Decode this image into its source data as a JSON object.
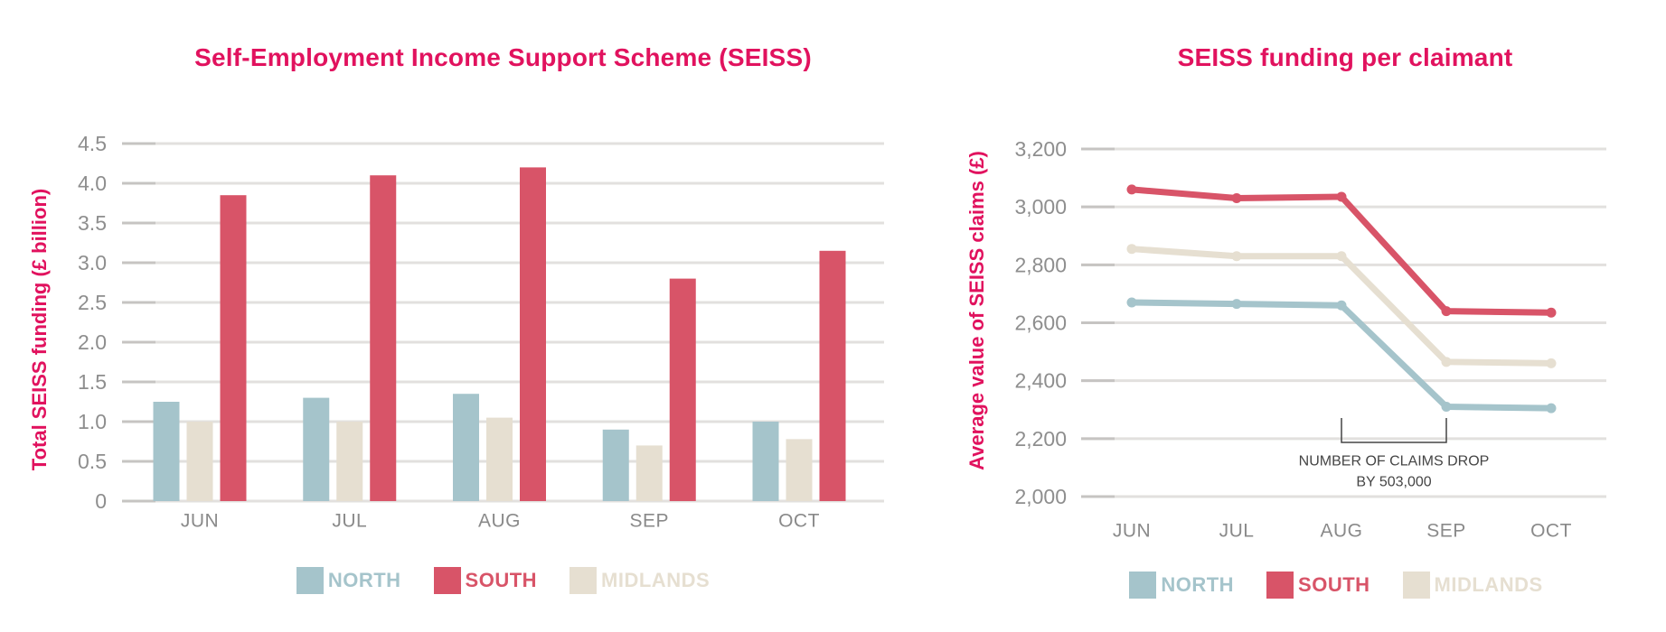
{
  "colors": {
    "pink": "#E1125E",
    "north": "#A5C4CB",
    "south": "#D85468",
    "midlands": "#E6DFD1",
    "tick_label": "#8E8E8E",
    "axis_label_gray": "#8A8A8A",
    "gridline": "#E2E0DE",
    "tick_stub": "#C6C4C2",
    "annotation": "#454545"
  },
  "chart_data": [
    {
      "type": "bar",
      "title": "Self-Employment Income Support Scheme (SEISS)",
      "ylabel": "Total SEISS funding (£ billion)",
      "categories": [
        "JUN",
        "JUL",
        "AUG",
        "SEP",
        "OCT"
      ],
      "series": [
        {
          "name": "NORTH",
          "color": "north",
          "values": [
            1.25,
            1.3,
            1.35,
            0.9,
            1.0
          ]
        },
        {
          "name": "MIDLANDS",
          "color": "midlands",
          "values": [
            1.0,
            1.0,
            1.05,
            0.7,
            0.78
          ]
        },
        {
          "name": "SOUTH",
          "color": "south",
          "values": [
            3.85,
            4.1,
            4.2,
            2.8,
            3.15
          ]
        }
      ],
      "ylim": [
        0,
        4.5
      ],
      "ytick_step": 0.5,
      "ytick_labels": [
        "0",
        "0.5",
        "1.0",
        "1.5",
        "2.0",
        "2.5",
        "3.0",
        "3.5",
        "4.0",
        "4.5"
      ],
      "grid": true,
      "legend_position": "bottom",
      "legend": [
        {
          "label": "NORTH",
          "color": "north"
        },
        {
          "label": "SOUTH",
          "color": "south"
        },
        {
          "label": "MIDLANDS",
          "color": "midlands"
        }
      ]
    },
    {
      "type": "line",
      "title": "SEISS funding per claimant",
      "ylabel": "Average value of SEISS claims (£)",
      "categories": [
        "JUN",
        "JUL",
        "AUG",
        "SEP",
        "OCT"
      ],
      "series": [
        {
          "name": "NORTH",
          "color": "north",
          "values": [
            2670,
            2665,
            2660,
            2310,
            2305
          ]
        },
        {
          "name": "MIDLANDS",
          "color": "midlands",
          "values": [
            2855,
            2830,
            2830,
            2465,
            2460
          ]
        },
        {
          "name": "SOUTH",
          "color": "south",
          "values": [
            3060,
            3030,
            3035,
            2640,
            2635
          ]
        }
      ],
      "ylim": [
        2000,
        3200
      ],
      "ytick_step": 200,
      "ytick_labels": [
        "2,000",
        "2,200",
        "2,400",
        "2,600",
        "2,800",
        "3,000",
        "3,200"
      ],
      "grid": true,
      "legend_position": "bottom",
      "legend": [
        {
          "label": "NORTH",
          "color": "north"
        },
        {
          "label": "SOUTH",
          "color": "south"
        },
        {
          "label": "MIDLANDS",
          "color": "midlands"
        }
      ],
      "annotation": {
        "text_lines": [
          "NUMBER OF CLAIMS DROP",
          "BY 503,000"
        ],
        "span_categories": [
          "AUG",
          "SEP"
        ]
      }
    }
  ]
}
